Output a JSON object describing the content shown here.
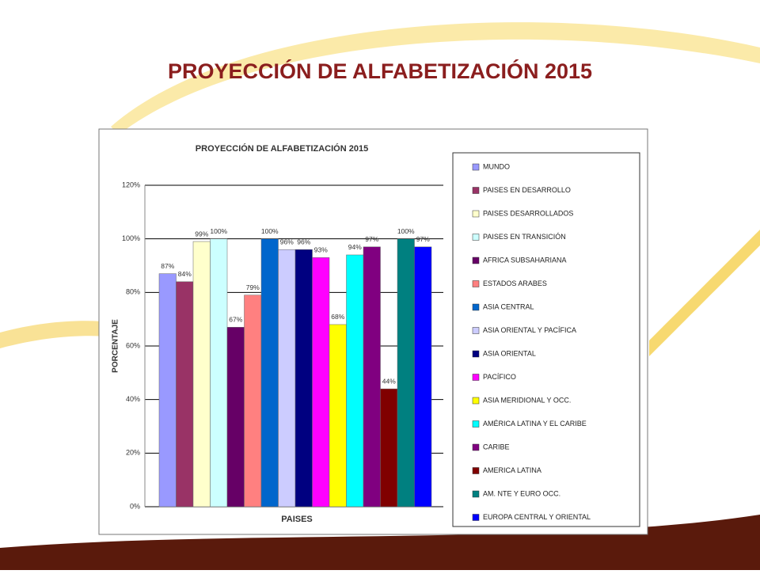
{
  "slide_title": "PROYECCIÓN DE ALFABETIZACIÓN 2015",
  "chart_data": {
    "type": "bar",
    "title": "PROYECCIÓN DE ALFABETIZACIÓN 2015",
    "x_label": "PAISES",
    "y_label": "PORCENTAJE",
    "categories": [
      null
    ],
    "ylim": [
      0,
      120
    ],
    "yticks": [
      {
        "value": 0,
        "label": "0%"
      },
      {
        "value": 20,
        "label": "20%"
      },
      {
        "value": 40,
        "label": "40%"
      },
      {
        "value": 60,
        "label": "60%"
      },
      {
        "value": 80,
        "label": "80%"
      },
      {
        "value": 100,
        "label": "100%"
      },
      {
        "value": 120,
        "label": "120%"
      }
    ],
    "grid": true,
    "legend": "right",
    "series": [
      {
        "name": "MUNDO",
        "color": "#9999ff",
        "values": [
          87
        ],
        "value_labels": [
          "87%"
        ]
      },
      {
        "name": "PAISES EN DESARROLLO",
        "color": "#993366",
        "values": [
          84
        ],
        "value_labels": [
          "84%"
        ]
      },
      {
        "name": "PAISES DESARROLLADOS",
        "color": "#ffffcc",
        "values": [
          99
        ],
        "value_labels": [
          "99%"
        ]
      },
      {
        "name": "PAISES EN TRANSICIÓN",
        "color": "#ccffff",
        "values": [
          100
        ],
        "value_labels": [
          "100%"
        ]
      },
      {
        "name": "AFRICA SUBSAHARIANA",
        "color": "#660066",
        "values": [
          67
        ],
        "value_labels": [
          "67%"
        ]
      },
      {
        "name": "ESTADOS ARABES",
        "color": "#ff8080",
        "values": [
          79
        ],
        "value_labels": [
          "79%"
        ]
      },
      {
        "name": "ASIA CENTRAL",
        "color": "#0066cc",
        "values": [
          100
        ],
        "value_labels": [
          "100%"
        ]
      },
      {
        "name": "ASIA ORIENTAL Y PACÍFICA",
        "color": "#ccccff",
        "values": [
          96
        ],
        "value_labels": [
          "96%"
        ]
      },
      {
        "name": "ASIA ORIENTAL",
        "color": "#000080",
        "values": [
          96
        ],
        "value_labels": [
          "96%"
        ]
      },
      {
        "name": "PACÍFICO",
        "color": "#ff00ff",
        "values": [
          93
        ],
        "value_labels": [
          "93%"
        ]
      },
      {
        "name": "ASIA MERIDIONAL Y OCC.",
        "color": "#ffff00",
        "values": [
          68
        ],
        "value_labels": [
          "68%"
        ]
      },
      {
        "name": "AMÉRICA LATINA Y EL CARIBE",
        "color": "#00ffff",
        "values": [
          94
        ],
        "value_labels": [
          "94%"
        ]
      },
      {
        "name": "CARIBE",
        "color": "#800080",
        "values": [
          97
        ],
        "value_labels": [
          "97%"
        ]
      },
      {
        "name": "AMERICA LATINA",
        "color": "#800000",
        "values": [
          44
        ],
        "value_labels": [
          "44%"
        ]
      },
      {
        "name": "AM. NTE Y EURO OCC.",
        "color": "#008080",
        "values": [
          100
        ],
        "value_labels": [
          "100%"
        ]
      },
      {
        "name": "EUROPA CENTRAL Y ORIENTAL",
        "color": "#0000ff",
        "values": [
          97
        ],
        "value_labels": [
          "97%"
        ]
      }
    ]
  }
}
